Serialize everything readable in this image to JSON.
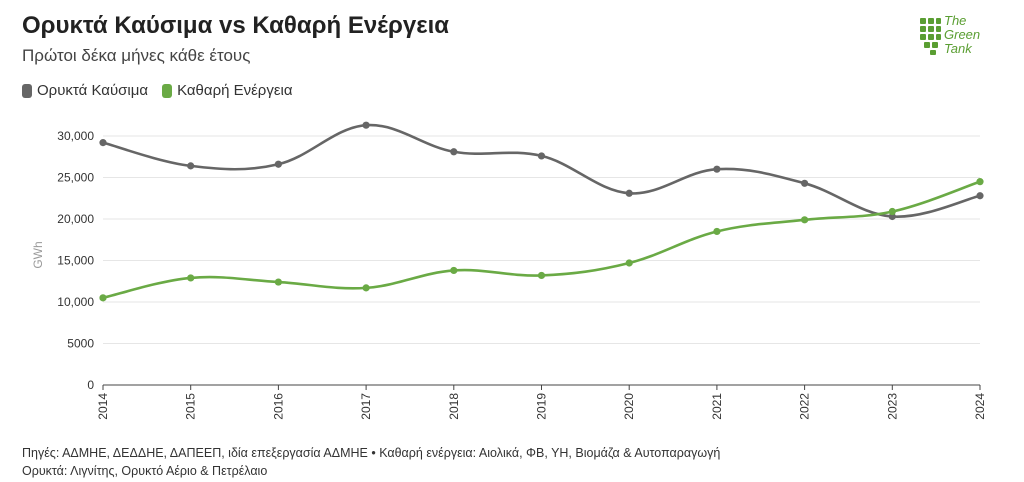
{
  "chart_data": {
    "type": "line",
    "title": "Ορυκτά Καύσιμα vs Καθαρή Ενέργεια",
    "subtitle": "Πρώτοι δέκα μήνες κάθε έτους",
    "ylabel": "GWh",
    "xlabel": "",
    "x": [
      "2014",
      "2015",
      "2016",
      "2017",
      "2018",
      "2019",
      "2020",
      "2021",
      "2022",
      "2023",
      "2024"
    ],
    "ylim": [
      0,
      30000
    ],
    "yticks": [
      0,
      5000,
      10000,
      15000,
      20000,
      25000,
      30000
    ],
    "ytick_labels": [
      "0",
      "5000",
      "10,000",
      "15,000",
      "20,000",
      "25,000",
      "30,000"
    ],
    "grid": true,
    "legend_position": "top-left",
    "series": [
      {
        "name": "Ορυκτά Καύσιμα",
        "color": "#666666",
        "values": [
          29200,
          26400,
          26600,
          31300,
          28100,
          27600,
          23100,
          26000,
          24300,
          20300,
          22800
        ]
      },
      {
        "name": "Καθαρή Ενέργεια",
        "color": "#6aaa45",
        "values": [
          10500,
          12900,
          12400,
          11700,
          13800,
          13200,
          14700,
          18500,
          19900,
          20900,
          24500
        ]
      }
    ]
  },
  "logo": {
    "line1": "The",
    "line2": "Green",
    "line3": "Tank",
    "color": "#5a9e32",
    "icon": "green-tank-logo-icon"
  },
  "footer": {
    "line1": "Πηγές: ΑΔΜΗΕ, ΔΕΔΔΗΕ, ΔΑΠΕΕΠ, ιδία επεξεργασία ΑΔΜΗΕ • Καθαρή ενέργεια: Αιολικά, ΦΒ, ΥΗ, Βιομάζα & Αυτοπαραγωγή",
    "line2": "Ορυκτά: Λιγνίτης, Ορυκτό Αέριο & Πετρέλαιο"
  }
}
